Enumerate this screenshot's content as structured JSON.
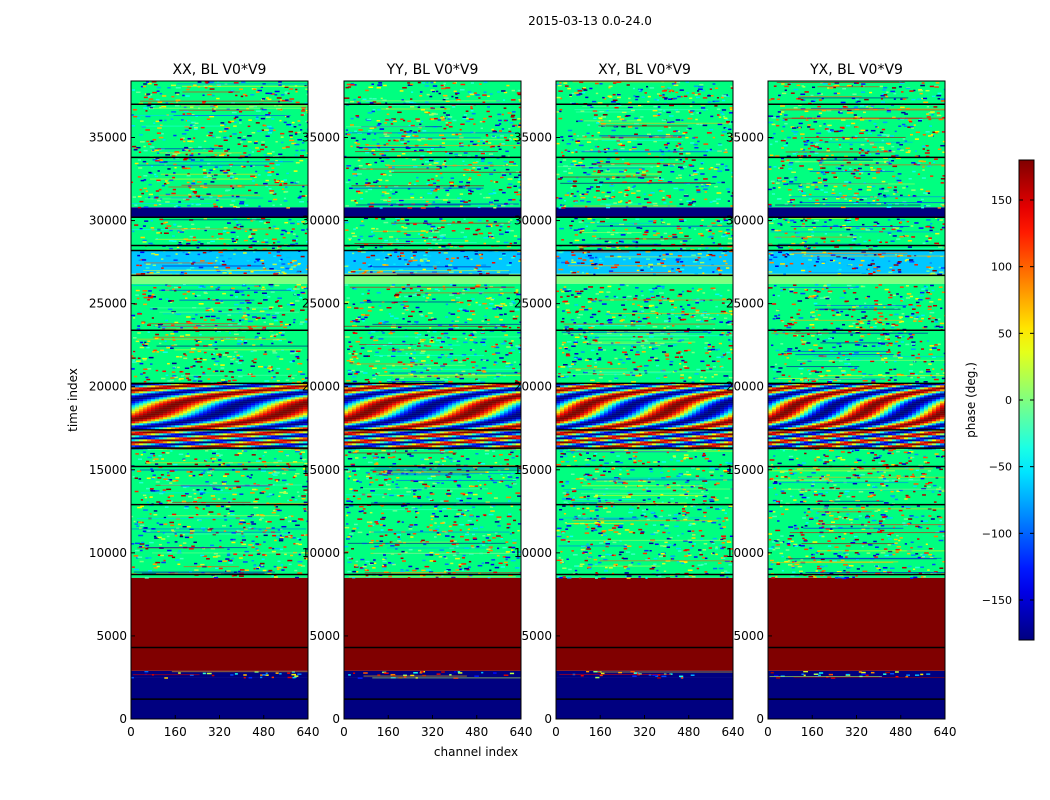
{
  "chart_data": {
    "type": "heatmap",
    "title": "2015-03-13 0.0-24.0",
    "xlabel": "channel index",
    "ylabel": "time index",
    "xlim": [
      0,
      640
    ],
    "ylim": [
      0,
      38400
    ],
    "xticks": [
      0,
      160,
      320,
      480,
      640
    ],
    "yticks": [
      0,
      5000,
      10000,
      15000,
      20000,
      25000,
      30000,
      35000
    ],
    "panels": [
      {
        "title": "XX, BL V0*V9"
      },
      {
        "title": "YY, BL V0*V9"
      },
      {
        "title": "XY, BL V0*V9"
      },
      {
        "title": "YX, BL V0*V9"
      }
    ],
    "colorbar": {
      "label": "phase (deg.)",
      "range": [
        -180,
        180
      ],
      "ticks": [
        -150,
        -100,
        -50,
        0,
        50,
        100,
        150
      ],
      "colormap": "jet"
    },
    "bands": [
      {
        "y0": 0,
        "y1": 2500,
        "fill": "#000080",
        "kind": "solid"
      },
      {
        "y0": 2500,
        "y1": 2900,
        "fill": "#000080",
        "kind": "noise"
      },
      {
        "y0": 2900,
        "y1": 8500,
        "fill": "#800000",
        "kind": "solid"
      },
      {
        "y0": 8500,
        "y1": 16300,
        "fill": "#00ff80",
        "kind": "noise"
      },
      {
        "y0": 16300,
        "y1": 20200,
        "fill": "#00ff80",
        "kind": "fringe"
      },
      {
        "y0": 20200,
        "y1": 26200,
        "fill": "#00ff80",
        "kind": "noise"
      },
      {
        "y0": 26200,
        "y1": 26800,
        "fill": "#80ff80",
        "kind": "solid"
      },
      {
        "y0": 26800,
        "y1": 28200,
        "fill": "#00c8ff",
        "kind": "noise"
      },
      {
        "y0": 28200,
        "y1": 30200,
        "fill": "#00ff80",
        "kind": "noise"
      },
      {
        "y0": 30200,
        "y1": 30800,
        "fill": "#000080",
        "kind": "solid"
      },
      {
        "y0": 30800,
        "y1": 38400,
        "fill": "#00ff80",
        "kind": "noise"
      }
    ],
    "black_lines": [
      1200,
      4300,
      8700,
      12900,
      15200,
      16300,
      17400,
      20200,
      23400,
      26700,
      28200,
      28500,
      30200,
      33800,
      37000
    ]
  }
}
